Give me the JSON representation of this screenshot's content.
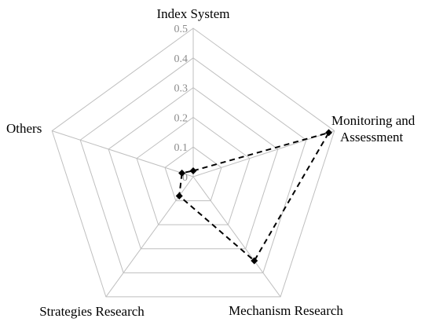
{
  "chart_data": {
    "type": "radar",
    "axes": [
      {
        "label_lines": [
          "Index System"
        ]
      },
      {
        "label_lines": [
          "Monitoring and",
          "Assessment"
        ]
      },
      {
        "label_lines": [
          "Mechanism Research"
        ]
      },
      {
        "label_lines": [
          "Strategies Research"
        ]
      },
      {
        "label_lines": [
          "Others"
        ]
      }
    ],
    "series": [
      {
        "values": [
          0.02,
          0.48,
          0.35,
          0.08,
          0.04
        ]
      }
    ],
    "r_range": [
      0,
      0.5
    ],
    "r_ticks": [
      "0",
      "0.1",
      "0.2",
      "0.3",
      "0.4",
      "0.5"
    ],
    "grid": "pentagon",
    "colors": {
      "grid": "#bfbfbf",
      "series": "#000000",
      "tick_text": "#8c8c8c",
      "text": "#000000"
    },
    "line_style": "dashed",
    "marker": "diamond"
  }
}
